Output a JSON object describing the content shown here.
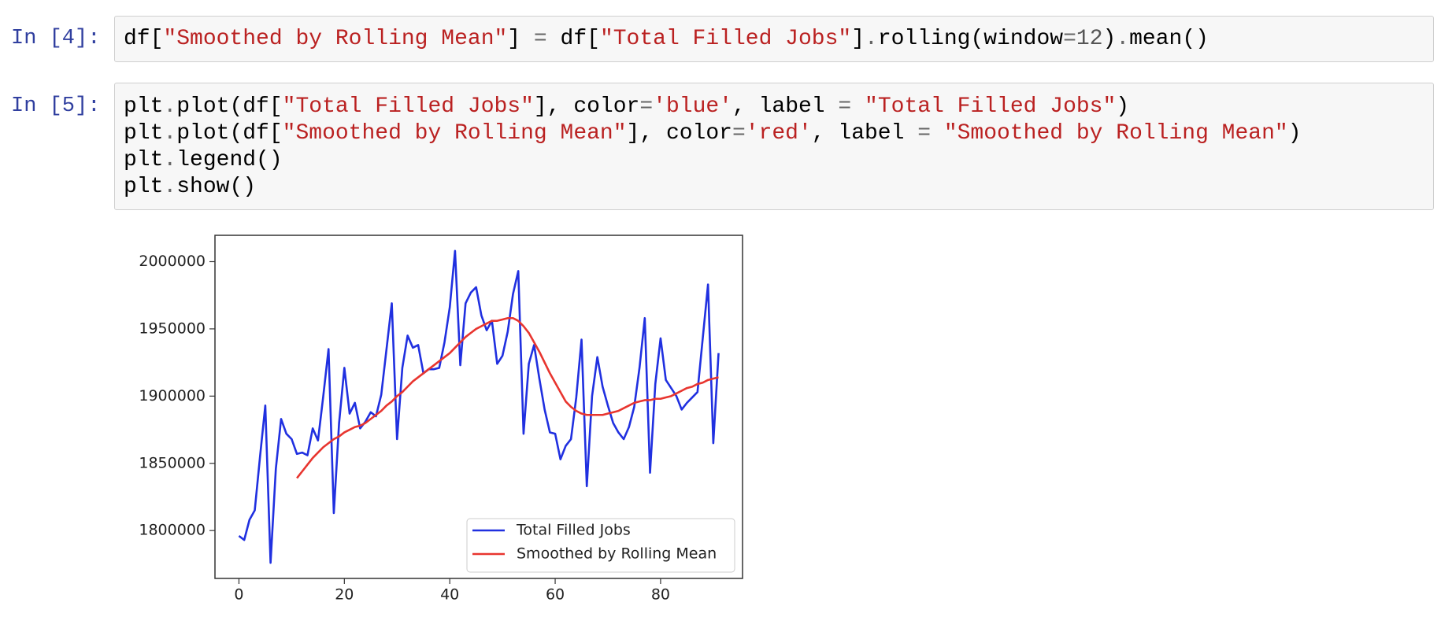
{
  "cells": [
    {
      "prompt": "In [4]:",
      "lines": [
        [
          {
            "text": "df[",
            "kind": "plain"
          },
          {
            "text": "\"Smoothed by Rolling Mean\"",
            "kind": "string"
          },
          {
            "text": "] ",
            "kind": "plain"
          },
          {
            "text": "=",
            "kind": "op"
          },
          {
            "text": " df[",
            "kind": "plain"
          },
          {
            "text": "\"Total Filled Jobs\"",
            "kind": "string"
          },
          {
            "text": "]",
            "kind": "plain"
          },
          {
            "text": ".",
            "kind": "op"
          },
          {
            "text": "rolling(window",
            "kind": "plain"
          },
          {
            "text": "=",
            "kind": "op"
          },
          {
            "text": "12",
            "kind": "number"
          },
          {
            "text": ")",
            "kind": "plain"
          },
          {
            "text": ".",
            "kind": "op"
          },
          {
            "text": "mean()",
            "kind": "plain"
          }
        ]
      ]
    },
    {
      "prompt": "In [5]:",
      "lines": [
        [
          {
            "text": "plt",
            "kind": "plain"
          },
          {
            "text": ".",
            "kind": "op"
          },
          {
            "text": "plot(df[",
            "kind": "plain"
          },
          {
            "text": "\"Total Filled Jobs\"",
            "kind": "string"
          },
          {
            "text": "], color",
            "kind": "plain"
          },
          {
            "text": "=",
            "kind": "op"
          },
          {
            "text": "'blue'",
            "kind": "string"
          },
          {
            "text": ", label",
            "kind": "plain"
          },
          {
            "text": " = ",
            "kind": "op"
          },
          {
            "text": "\"Total Filled Jobs\"",
            "kind": "string"
          },
          {
            "text": ")",
            "kind": "plain"
          }
        ],
        [
          {
            "text": "plt",
            "kind": "plain"
          },
          {
            "text": ".",
            "kind": "op"
          },
          {
            "text": "plot(df[",
            "kind": "plain"
          },
          {
            "text": "\"Smoothed by Rolling Mean\"",
            "kind": "string"
          },
          {
            "text": "], color",
            "kind": "plain"
          },
          {
            "text": "=",
            "kind": "op"
          },
          {
            "text": "'red'",
            "kind": "string"
          },
          {
            "text": ", label",
            "kind": "plain"
          },
          {
            "text": " = ",
            "kind": "op"
          },
          {
            "text": "\"Smoothed by Rolling Mean\"",
            "kind": "string"
          },
          {
            "text": ")",
            "kind": "plain"
          }
        ],
        [
          {
            "text": "plt",
            "kind": "plain"
          },
          {
            "text": ".",
            "kind": "op"
          },
          {
            "text": "legend()",
            "kind": "plain"
          }
        ],
        [
          {
            "text": "plt",
            "kind": "plain"
          },
          {
            "text": ".",
            "kind": "op"
          },
          {
            "text": "show()",
            "kind": "plain"
          }
        ]
      ]
    }
  ],
  "chart_data": {
    "type": "line",
    "x": [
      0,
      1,
      2,
      3,
      4,
      5,
      6,
      7,
      8,
      9,
      10,
      11,
      12,
      13,
      14,
      15,
      16,
      17,
      18,
      19,
      20,
      21,
      22,
      23,
      24,
      25,
      26,
      27,
      28,
      29,
      30,
      31,
      32,
      33,
      34,
      35,
      36,
      37,
      38,
      39,
      40,
      41,
      42,
      43,
      44,
      45,
      46,
      47,
      48,
      49,
      50,
      51,
      52,
      53,
      54,
      55,
      56,
      57,
      58,
      59,
      60,
      61,
      62,
      63,
      64,
      65,
      66,
      67,
      68,
      69,
      70,
      71,
      72,
      73,
      74,
      75,
      76,
      77,
      78,
      79,
      80,
      81,
      82,
      83,
      84,
      85,
      86,
      87,
      88,
      89,
      90,
      91
    ],
    "series": [
      {
        "name": "Total Filled Jobs",
        "color": "#2030e0",
        "values": [
          1796000,
          1793000,
          1808000,
          1815000,
          1855000,
          1893000,
          1776000,
          1846000,
          1883000,
          1872000,
          1868000,
          1857000,
          1858000,
          1856000,
          1876000,
          1867000,
          1900000,
          1935000,
          1813000,
          1880000,
          1921000,
          1887000,
          1895000,
          1876000,
          1881000,
          1888000,
          1885000,
          1901000,
          1935000,
          1969000,
          1868000,
          1921000,
          1945000,
          1936000,
          1938000,
          1917000,
          1920000,
          1920000,
          1921000,
          1940000,
          1966000,
          2008000,
          1923000,
          1969000,
          1977000,
          1981000,
          1960000,
          1949000,
          1956000,
          1924000,
          1930000,
          1948000,
          1976000,
          1993000,
          1872000,
          1924000,
          1938000,
          1913000,
          1890000,
          1873000,
          1872000,
          1853000,
          1863000,
          1868000,
          1899000,
          1942000,
          1833000,
          1900000,
          1929000,
          1907000,
          1893000,
          1880000,
          1873000,
          1868000,
          1877000,
          1892000,
          1921000,
          1958000,
          1843000,
          1909000,
          1943000,
          1912000,
          1906000,
          1900000,
          1890000,
          1895000,
          1899000,
          1903000,
          1943000,
          1983000,
          1865000,
          1932000
        ]
      },
      {
        "name": "Smoothed by Rolling Mean",
        "color": "#e8352f",
        "values": [
          null,
          null,
          null,
          null,
          null,
          null,
          null,
          null,
          null,
          null,
          null,
          1839000,
          1844000,
          1849000,
          1854000,
          1858000,
          1862000,
          1865000,
          1868000,
          1870000,
          1873000,
          1875000,
          1877000,
          1878000,
          1880000,
          1883000,
          1886000,
          1889000,
          1893000,
          1896000,
          1900000,
          1903000,
          1907000,
          1911000,
          1914000,
          1917000,
          1920000,
          1923000,
          1926000,
          1929000,
          1932000,
          1936000,
          1940000,
          1944000,
          1947000,
          1950000,
          1952000,
          1954000,
          1956000,
          1956000,
          1957000,
          1958000,
          1958000,
          1956000,
          1952000,
          1947000,
          1940000,
          1933000,
          1925000,
          1917000,
          1910000,
          1903000,
          1896000,
          1892000,
          1889000,
          1887000,
          1886000,
          1886000,
          1886000,
          1886000,
          1887000,
          1888000,
          1889000,
          1891000,
          1893000,
          1895000,
          1896000,
          1897000,
          1897000,
          1898000,
          1898000,
          1899000,
          1900000,
          1902000,
          1904000,
          1906000,
          1907000,
          1909000,
          1910000,
          1912000,
          1913000,
          1914000
        ]
      }
    ],
    "xlim": [
      -4.55,
      95.55
    ],
    "xticks": [
      0,
      20,
      40,
      60,
      80
    ],
    "ylim": [
      1764400,
      2019600
    ],
    "yticks": [
      1800000,
      1850000,
      1900000,
      1950000,
      2000000
    ],
    "grid": false,
    "legend": "lower right"
  }
}
